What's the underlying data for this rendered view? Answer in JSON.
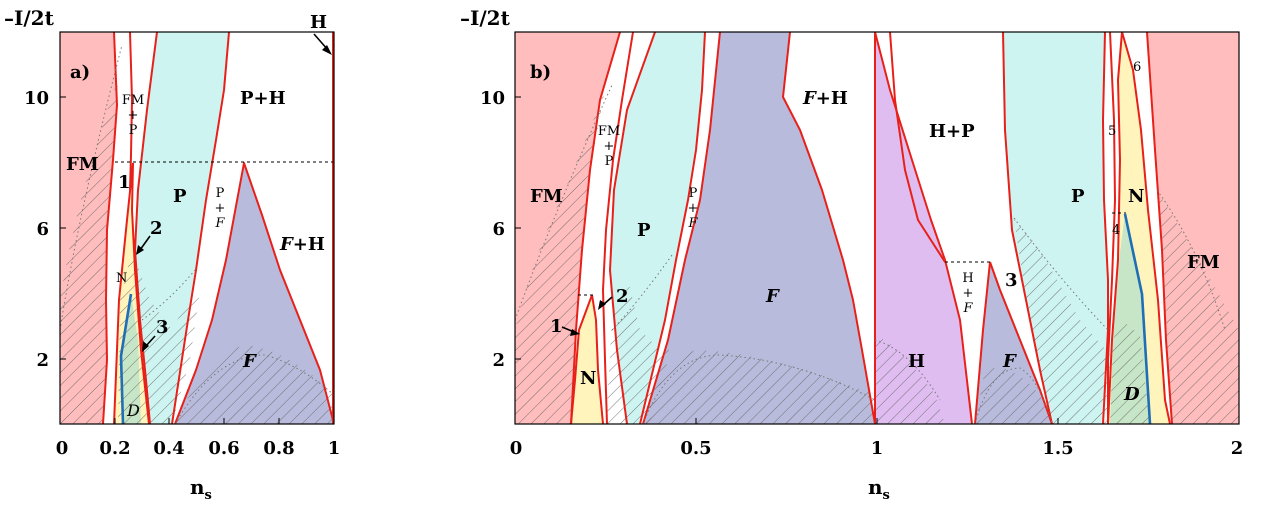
{
  "colors": {
    "FM": "#ffbdbd",
    "P": "#cdf4f1",
    "F": "#b9bbdc",
    "N": "#fff4bb",
    "H": "#dfbdf1",
    "D": "#c7e5c7",
    "boundary": "#e8201a",
    "blue_line": "#1f6fb6"
  },
  "panel_a": {
    "tag": "a)",
    "ylabel": "–I/2t",
    "xlabel_main": "n",
    "xlabel_sub": "s",
    "x_ticks": [
      "0",
      "0.2",
      "0.4",
      "0.6",
      "0.8",
      "1"
    ],
    "y_ticks": [
      "2",
      "6",
      "10"
    ],
    "labels": {
      "FM": "FM",
      "P": "P",
      "PH": "P+H",
      "FH_F": "F",
      "FH_rest": "+H",
      "F": "F",
      "N": "N",
      "D": "D",
      "H": "H",
      "fmp_top": "FM",
      "fmp_mid": "+",
      "fmp_bot": "P",
      "pf_top": "P",
      "pf_mid": "+",
      "pf_bot": "F",
      "n1": "1",
      "n2": "2",
      "n3": "3"
    }
  },
  "panel_b": {
    "tag": "b)",
    "ylabel": "–I/2t",
    "xlabel_main": "n",
    "xlabel_sub": "s",
    "x_ticks": [
      "0",
      "0.5",
      "1",
      "1.5",
      "2"
    ],
    "y_ticks": [
      "2",
      "6",
      "10"
    ],
    "labels": {
      "FM_left": "FM",
      "FM_right": "FM",
      "P_left": "P",
      "P_right": "P",
      "FH_F": "F",
      "FH_rest": "+H",
      "HP": "H+P",
      "F_mid": "F",
      "F_small": "F",
      "H": "H",
      "N_left": "N",
      "N_right": "N",
      "D": "D",
      "fmp_top": "FM",
      "fmp_mid": "+",
      "fmp_bot": "P",
      "pf_top": "P",
      "pf_mid": "+",
      "pf_bot": "F",
      "hf_top": "H",
      "hf_mid": "+",
      "hf_bot": "F",
      "n1": "1",
      "n2": "2",
      "n3": "3",
      "n4": "4",
      "n5": "5",
      "n6": "6"
    }
  }
}
